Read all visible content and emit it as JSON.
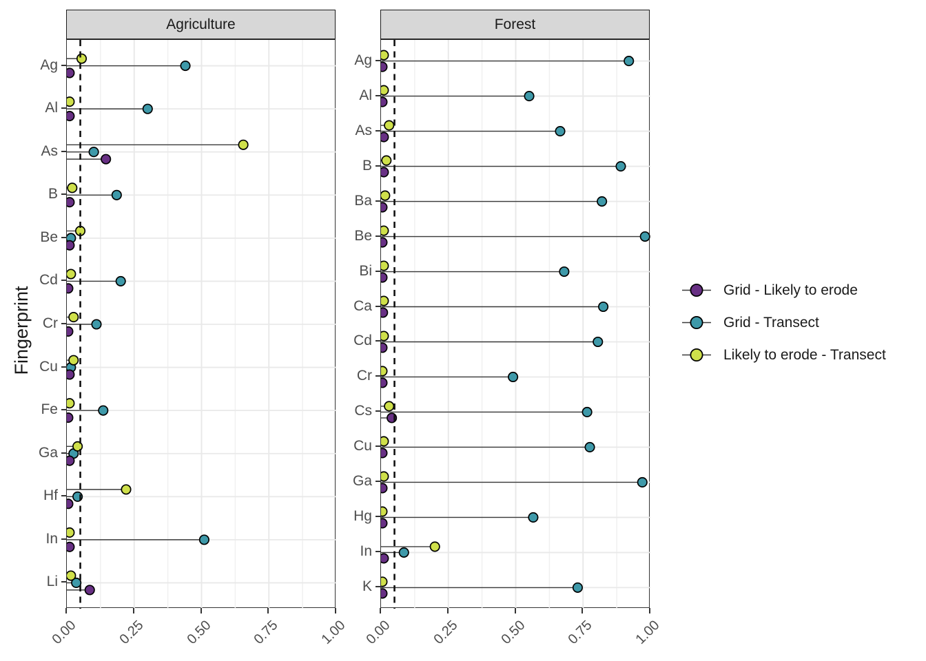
{
  "figure": {
    "background": "#ffffff",
    "ylabel": "Fingerprint"
  },
  "legend": {
    "items": [
      {
        "label": "Grid - Likely to erode",
        "color": "#683084"
      },
      {
        "label": "Grid - Transect",
        "color": "#3e99a9"
      },
      {
        "label": "Likely to erode - Transect",
        "color": "#cfe04b"
      }
    ]
  },
  "chart_data": {
    "type": "lollipop",
    "orientation": "horizontal",
    "ylabel": "Fingerprint",
    "xlim": [
      0,
      1
    ],
    "xticks": [
      0,
      0.25,
      0.5,
      0.75,
      1
    ],
    "xtick_labels": [
      "0.00",
      "0.25",
      "0.50",
      "0.75",
      "1.00"
    ],
    "x_minor_step": 0.125,
    "reference_line_x": 0.05,
    "reference_line_style": "dashed",
    "grid": "major-and-minor-vertical, major-horizontal-per-category",
    "legend_position": "right",
    "series_order_top_to_bottom": [
      "Likely to erode - Transect",
      "Grid - Transect",
      "Grid - Likely to erode"
    ],
    "series_colors": {
      "Grid - Likely to erode": "#683084",
      "Grid - Transect": "#3e99a9",
      "Likely to erode - Transect": "#cfe04b"
    },
    "facets": [
      {
        "title": "Agriculture",
        "categories": [
          "Ag",
          "Al",
          "As",
          "B",
          "Be",
          "Cd",
          "Cr",
          "Cu",
          "Fe",
          "Ga",
          "Hf",
          "In",
          "Li"
        ],
        "series": [
          {
            "name": "Likely to erode - Transect",
            "values": [
              0.055,
              0.01,
              0.655,
              0.02,
              0.05,
              0.015,
              0.025,
              0.025,
              0.01,
              0.04,
              0.22,
              0.01,
              0.015
            ]
          },
          {
            "name": "Grid - Transect",
            "values": [
              0.44,
              0.3,
              0.1,
              0.185,
              0.015,
              0.2,
              0.11,
              0.015,
              0.135,
              0.025,
              0.04,
              0.51,
              0.035
            ]
          },
          {
            "name": "Grid - Likely to erode",
            "values": [
              0.01,
              0.01,
              0.145,
              0.01,
              0.01,
              0.005,
              0.005,
              0.01,
              0.005,
              0.01,
              0.005,
              0.01,
              0.085
            ]
          }
        ]
      },
      {
        "title": "Forest",
        "categories": [
          "Ag",
          "Al",
          "As",
          "B",
          "Ba",
          "Be",
          "Bi",
          "Ca",
          "Cd",
          "Cr",
          "Cs",
          "Cu",
          "Ga",
          "Hg",
          "In",
          "K"
        ],
        "series": [
          {
            "name": "Likely to erode - Transect",
            "values": [
              0.01,
              0.01,
              0.03,
              0.02,
              0.015,
              0.01,
              0.01,
              0.01,
              0.01,
              0.005,
              0.03,
              0.01,
              0.01,
              0.005,
              0.2,
              0.005
            ]
          },
          {
            "name": "Grid - Transect",
            "values": [
              0.92,
              0.55,
              0.665,
              0.89,
              0.82,
              0.98,
              0.68,
              0.825,
              0.805,
              0.49,
              0.765,
              0.775,
              0.97,
              0.565,
              0.085,
              0.73
            ]
          },
          {
            "name": "Grid - Likely to erode",
            "values": [
              0.005,
              0.005,
              0.01,
              0.01,
              0.005,
              0.005,
              0.005,
              0.007,
              0.005,
              0.005,
              0.04,
              0.005,
              0.005,
              0.005,
              0.01,
              0.005
            ]
          }
        ]
      }
    ],
    "styles": {
      "grid_major": "#e9e9e9",
      "grid_minor": "#f0f0f0",
      "panel_border": "#333333",
      "strip_bg": "#d7d7d7",
      "strip_border": "#1a1a1a",
      "axis_text": "#4d4d4d",
      "title_text": "#1a1a1a",
      "stem": "#3a3a3a",
      "point_stroke": "#000000",
      "reference_line": "#111111"
    }
  }
}
